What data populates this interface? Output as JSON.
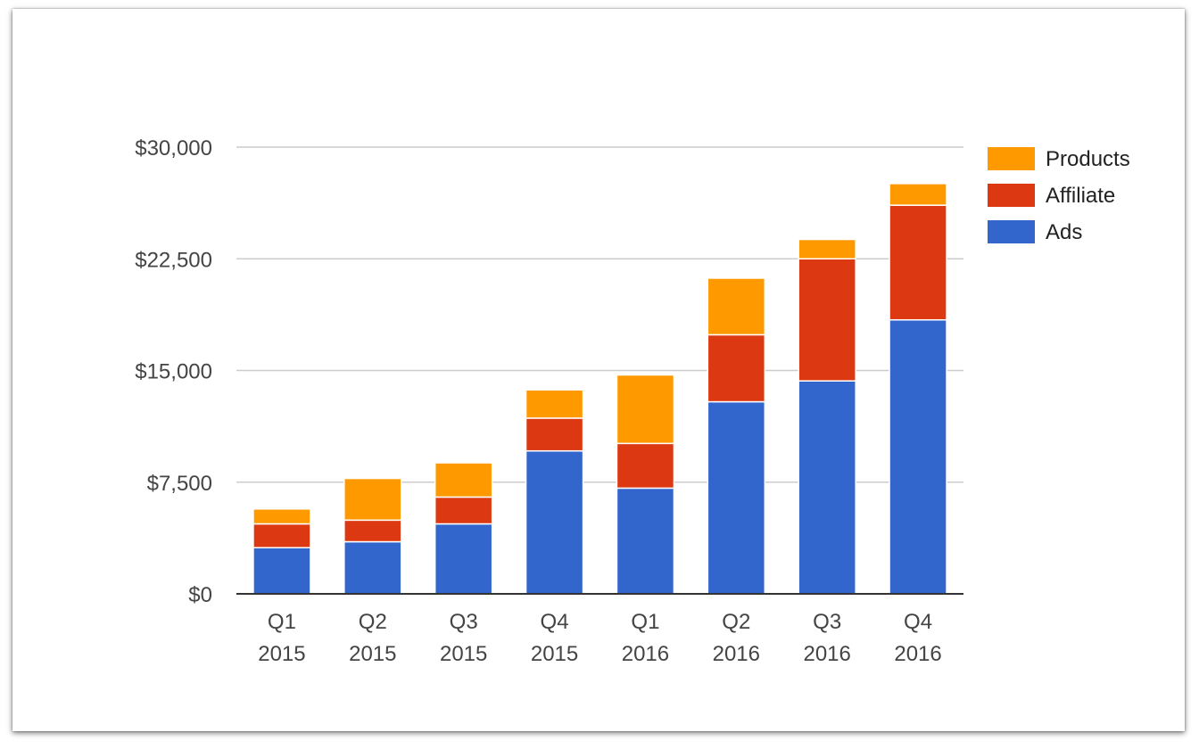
{
  "chart_data": {
    "type": "bar",
    "stacked": true,
    "categories": [
      [
        "Q1",
        "2015"
      ],
      [
        "Q2",
        "2015"
      ],
      [
        "Q3",
        "2015"
      ],
      [
        "Q4",
        "2015"
      ],
      [
        "Q1",
        "2016"
      ],
      [
        "Q2",
        "2016"
      ],
      [
        "Q3",
        "2016"
      ],
      [
        "Q4",
        "2016"
      ]
    ],
    "series": [
      {
        "name": "Ads",
        "color": "#3366cc",
        "values": [
          3100,
          3500,
          4700,
          9600,
          7100,
          12900,
          14300,
          18400
        ]
      },
      {
        "name": "Affiliate",
        "color": "#dc3912",
        "values": [
          1600,
          1450,
          1800,
          2200,
          3000,
          4500,
          8200,
          7700
        ]
      },
      {
        "name": "Products",
        "color": "#ff9900",
        "values": [
          1000,
          2800,
          2300,
          1900,
          4600,
          3800,
          1300,
          1450
        ]
      }
    ],
    "legend_order": [
      "Products",
      "Affiliate",
      "Ads"
    ],
    "legend_position": "right",
    "ylim": [
      0,
      30000
    ],
    "yticks": [
      0,
      7500,
      15000,
      22500,
      30000
    ],
    "ytick_labels": [
      "$0",
      "$7,500",
      "$15,000",
      "$22,500",
      "$30,000"
    ],
    "grid": true,
    "title": "",
    "xlabel": "",
    "ylabel": ""
  }
}
